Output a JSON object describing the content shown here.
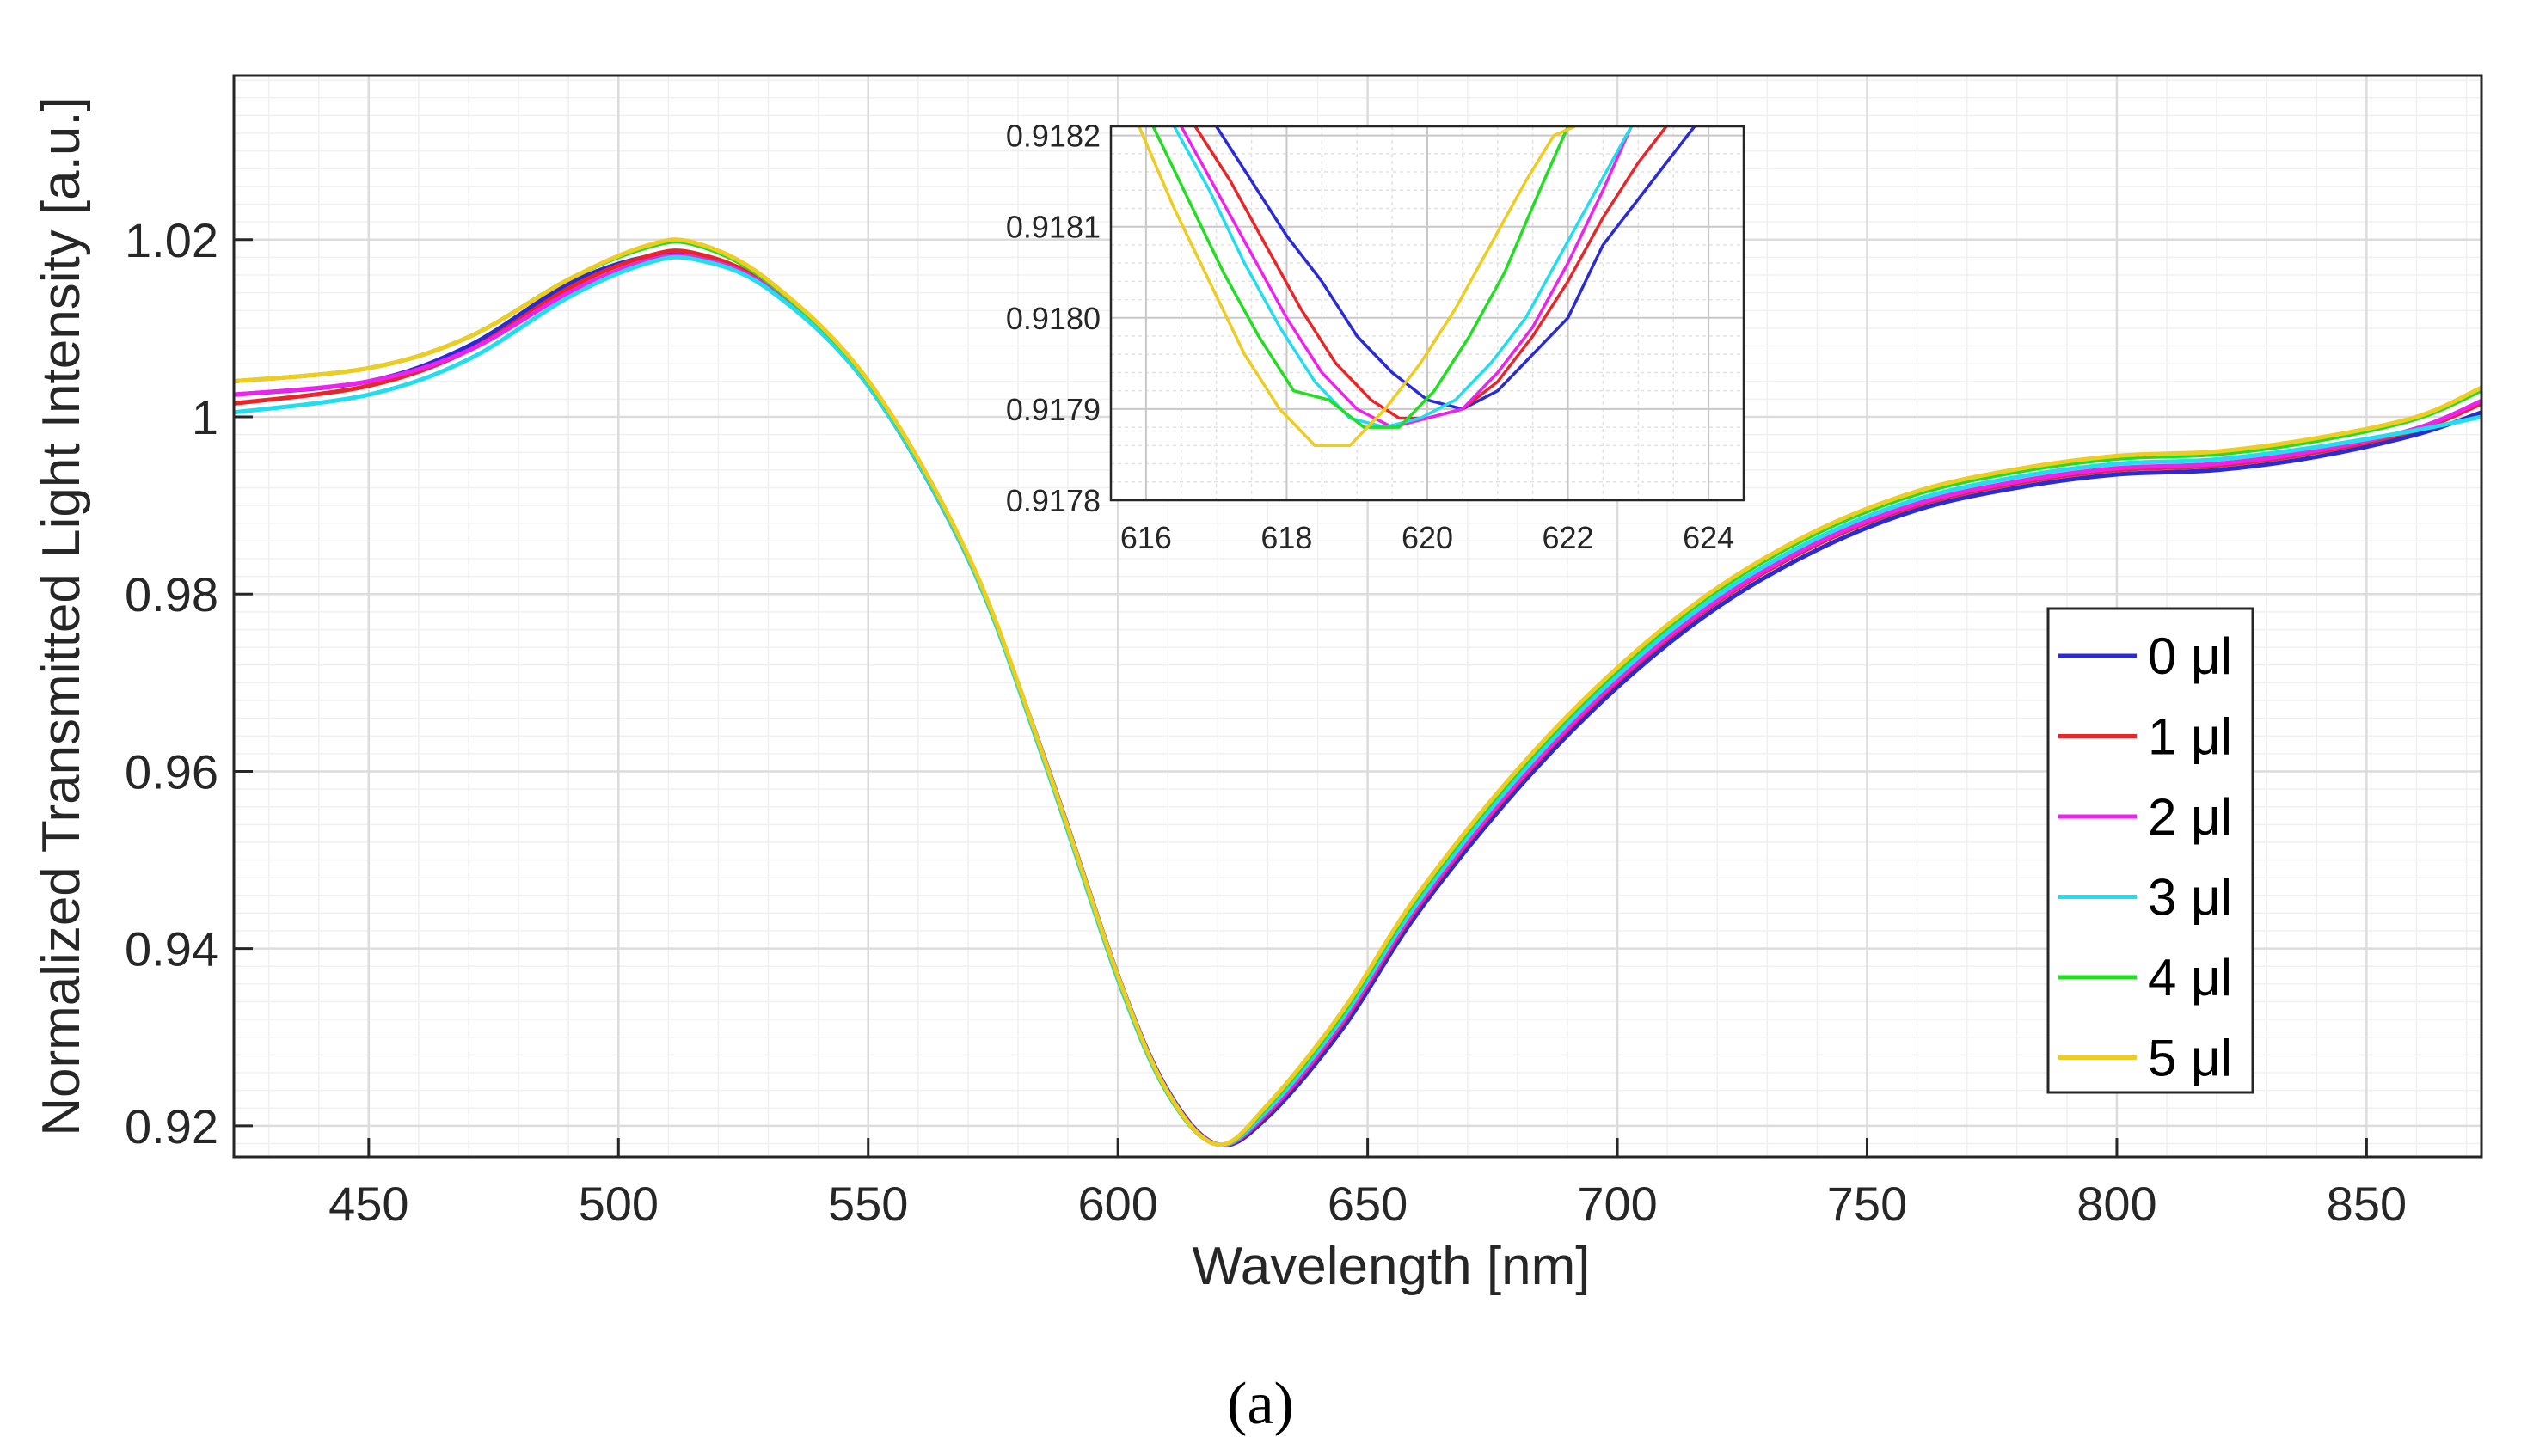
{
  "chart_data": [
    {
      "type": "line",
      "title": "",
      "xlabel": "Wavelength [nm]",
      "ylabel": "Normalized Transmitted Light Intensity [a.u.]",
      "xlim": [
        423,
        873
      ],
      "ylim": [
        0.9165,
        1.0385
      ],
      "xticks": [
        450,
        500,
        550,
        600,
        650,
        700,
        750,
        800,
        850
      ],
      "yticks": [
        0.92,
        0.94,
        0.96,
        0.98,
        1,
        1.02
      ],
      "ytick_labels": [
        "0.92",
        "0.94",
        "0.96",
        "0.98",
        "1",
        "1.02"
      ],
      "grid": true,
      "legend_position": "right",
      "x": [
        423,
        450,
        470,
        490,
        505,
        515,
        530,
        550,
        570,
        585,
        600,
        610,
        620,
        630,
        645,
        660,
        680,
        700,
        720,
        740,
        760,
        780,
        800,
        820,
        840,
        860,
        873
      ],
      "series": [
        {
          "name": "0 μl",
          "color": "#2b2bd6",
          "values": [
            1.0025,
            1.004,
            1.008,
            1.015,
            1.018,
            1.018,
            1.0145,
            1.0035,
            0.984,
            0.962,
            0.937,
            0.924,
            0.9179,
            0.921,
            0.931,
            0.944,
            0.958,
            0.9695,
            0.9785,
            0.985,
            0.9895,
            0.992,
            0.9935,
            0.994,
            0.9955,
            0.998,
            1.0005
          ]
        },
        {
          "name": "1 μl",
          "color": "#e8262a",
          "values": [
            1.0015,
            1.0035,
            1.0075,
            1.0145,
            1.018,
            1.0185,
            1.0148,
            1.0037,
            0.9842,
            0.9618,
            0.9368,
            0.9238,
            0.9179,
            0.9214,
            0.9316,
            0.9446,
            0.9586,
            0.9701,
            0.9791,
            0.9856,
            0.99,
            0.9925,
            0.994,
            0.9945,
            0.996,
            0.9985,
            1.0015
          ]
        },
        {
          "name": "2 μl",
          "color": "#ee22ee",
          "values": [
            1.0025,
            1.004,
            1.0075,
            1.014,
            1.0175,
            1.018,
            1.0146,
            1.0036,
            0.9841,
            0.9617,
            0.9367,
            0.9237,
            0.9179,
            0.9215,
            0.9318,
            0.9448,
            0.9588,
            0.9703,
            0.9793,
            0.9858,
            0.9902,
            0.9927,
            0.9942,
            0.9947,
            0.9962,
            0.9987,
            1.0018
          ]
        },
        {
          "name": "3 μl",
          "color": "#22dded",
          "values": [
            1.0005,
            1.0025,
            1.0065,
            1.0135,
            1.0172,
            1.0178,
            1.0144,
            1.0035,
            0.984,
            0.9615,
            0.9365,
            0.9236,
            0.9179,
            0.9218,
            0.9322,
            0.9452,
            0.9593,
            0.9708,
            0.9798,
            0.9863,
            0.9907,
            0.9932,
            0.9947,
            0.9952,
            0.9966,
            0.9985,
            1.0
          ]
        },
        {
          "name": "4 μl",
          "color": "#22dd22",
          "values": [
            1.004,
            1.0055,
            1.009,
            1.0155,
            1.019,
            1.0195,
            1.0152,
            1.004,
            0.9843,
            0.9618,
            0.9368,
            0.9237,
            0.9179,
            0.9222,
            0.9327,
            0.9458,
            0.9599,
            0.9714,
            0.9804,
            0.9869,
            0.9913,
            0.9938,
            0.9953,
            0.9958,
            0.9973,
            0.9998,
            1.003
          ]
        },
        {
          "name": "5 μl",
          "color": "#eecc22",
          "values": [
            1.004,
            1.0055,
            1.009,
            1.0155,
            1.0192,
            1.0197,
            1.0154,
            1.0041,
            0.9844,
            0.9619,
            0.9369,
            0.9238,
            0.9179,
            0.9224,
            0.933,
            0.9461,
            0.9602,
            0.9717,
            0.9807,
            0.9872,
            0.9916,
            0.9941,
            0.9956,
            0.9961,
            0.9976,
            1.0,
            1.0033
          ]
        }
      ]
    },
    {
      "type": "line",
      "role": "inset",
      "title": "",
      "xlim": [
        615.5,
        624.5
      ],
      "ylim": [
        0.9178,
        0.91821
      ],
      "xticks": [
        616,
        618,
        620,
        622,
        624
      ],
      "yticks": [
        0.9178,
        0.9179,
        0.918,
        0.9181,
        0.9182
      ],
      "ytick_labels": [
        "0.9178",
        "0.9179",
        "0.9180",
        "0.9181",
        "0.9182"
      ],
      "grid": true,
      "series": [
        {
          "name": "0 μl",
          "color": "#2b2bd6",
          "x": [
            617.0,
            617.5,
            618.0,
            618.5,
            619.0,
            619.5,
            620.0,
            620.5,
            621.0,
            621.5,
            622.0,
            622.5,
            623.0,
            623.5,
            623.8
          ],
          "values": [
            0.91821,
            0.91815,
            0.91809,
            0.91804,
            0.91798,
            0.91794,
            0.91791,
            0.9179,
            0.91792,
            0.91796,
            0.918,
            0.91808,
            0.91813,
            0.91818,
            0.91821
          ]
        },
        {
          "name": "1 μl",
          "color": "#e8262a",
          "x": [
            616.7,
            617.2,
            617.7,
            618.2,
            618.7,
            619.2,
            619.6,
            620.0,
            620.5,
            621.0,
            621.5,
            622.0,
            622.5,
            623.0,
            623.4
          ],
          "values": [
            0.91821,
            0.91815,
            0.91808,
            0.91801,
            0.91795,
            0.91791,
            0.91789,
            0.91789,
            0.9179,
            0.91793,
            0.91798,
            0.91804,
            0.91811,
            0.91817,
            0.91821
          ]
        },
        {
          "name": "2 μl",
          "color": "#ee22ee",
          "x": [
            616.5,
            617.0,
            617.5,
            618.0,
            618.5,
            619.0,
            619.5,
            620.0,
            620.5,
            621.0,
            621.5,
            622.0,
            622.5,
            622.9
          ],
          "values": [
            0.91821,
            0.91814,
            0.91807,
            0.918,
            0.91794,
            0.9179,
            0.91788,
            0.91789,
            0.9179,
            0.91794,
            0.91799,
            0.91806,
            0.91814,
            0.91821
          ]
        },
        {
          "name": "3 μl",
          "color": "#22dded",
          "x": [
            616.4,
            616.9,
            617.4,
            617.9,
            618.4,
            618.9,
            619.4,
            619.9,
            620.4,
            620.9,
            621.4,
            621.9,
            622.4,
            622.9
          ],
          "values": [
            0.91821,
            0.91814,
            0.91806,
            0.91799,
            0.91793,
            0.91789,
            0.91788,
            0.91789,
            0.91791,
            0.91795,
            0.918,
            0.91807,
            0.91814,
            0.91821
          ]
        },
        {
          "name": "4 μl",
          "color": "#22dd22",
          "x": [
            616.1,
            616.6,
            617.1,
            617.6,
            618.1,
            618.6,
            619.1,
            619.6,
            620.1,
            620.6,
            621.1,
            621.6,
            622.0
          ],
          "values": [
            0.91821,
            0.91813,
            0.91805,
            0.91798,
            0.91792,
            0.91791,
            0.91788,
            0.91788,
            0.91792,
            0.91798,
            0.91805,
            0.91814,
            0.91821
          ]
        },
        {
          "name": "5 μl",
          "color": "#eecc22",
          "x": [
            615.9,
            616.4,
            616.9,
            617.4,
            617.9,
            618.4,
            618.9,
            619.4,
            619.9,
            620.4,
            620.9,
            621.4,
            621.8,
            622.1
          ],
          "values": [
            0.91821,
            0.91812,
            0.91804,
            0.91796,
            0.9179,
            0.91786,
            0.91786,
            0.9179,
            0.91795,
            0.91801,
            0.91808,
            0.91815,
            0.9182,
            0.91821
          ]
        }
      ]
    }
  ],
  "caption": "(a)"
}
